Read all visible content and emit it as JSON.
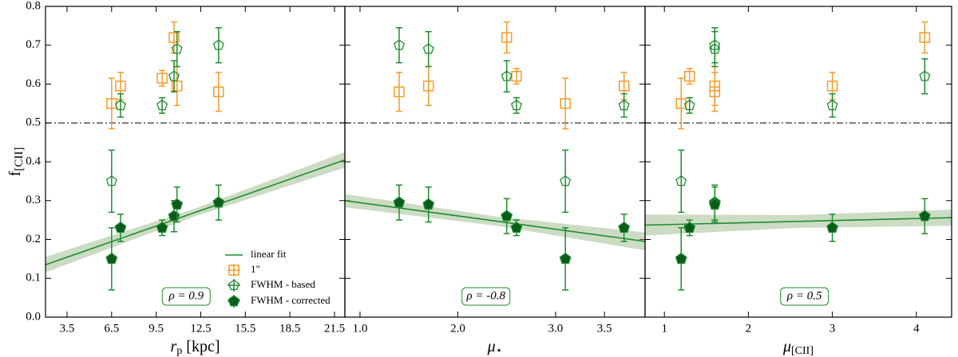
{
  "chart_data": [
    {
      "type": "scatter",
      "xlabel": "r",
      "xlabel_sub": "p",
      "xlabel_tail": " [kpc]",
      "ylabel": "f",
      "ylabel_sub": "[CII]",
      "xlim": [
        2.05,
        22.2
      ],
      "xticks": [
        3.5,
        6.5,
        9.5,
        12.5,
        15.5,
        18.5,
        21.5
      ],
      "ylim": [
        0,
        0.8
      ],
      "yticks": [
        {
          "value": 0,
          "label": "0.0"
        },
        0.1,
        0.2,
        0.3,
        0.4,
        0.5,
        0.6,
        0.7,
        0.8
      ],
      "hline": 0.5,
      "x": [
        6.5,
        7.1,
        9.9,
        10.7,
        10.9,
        13.7
      ],
      "series": [
        {
          "name": "1\"",
          "color": "#f39c2b",
          "marker": "square",
          "values": [
            0.55,
            0.595,
            0.615,
            0.72,
            0.595,
            0.58
          ],
          "errors": [
            0.065,
            0.035,
            0.02,
            0.04,
            0.05,
            0.05
          ]
        },
        {
          "name": "FWHM - based",
          "color": "#1e8c2e",
          "marker": "pentagon-open",
          "values": [
            0.35,
            0.545,
            0.545,
            0.62,
            0.69,
            0.7
          ],
          "errors": [
            0.08,
            0.03,
            0.02,
            0.04,
            0.045,
            0.045
          ]
        },
        {
          "name": "FWHM - corrected",
          "color": "#1e8c2e",
          "marker": "pentagon-filled",
          "values": [
            0.15,
            0.23,
            0.23,
            0.26,
            0.29,
            0.295
          ],
          "errors": [
            0.08,
            0.035,
            0.02,
            0.04,
            0.045,
            0.045
          ]
        }
      ],
      "fit": {
        "name": "linear fit",
        "color": "#1e8c2e",
        "x": [
          2.05,
          12,
          22.2
        ],
        "values": [
          0.135,
          0.268,
          0.405
        ],
        "lower": [
          0.115,
          0.258,
          0.385
        ],
        "upper": [
          0.155,
          0.278,
          0.425
        ]
      },
      "annotation": "ρ = 0.9",
      "legend": "lower right"
    },
    {
      "type": "scatter",
      "xlabel": "μ",
      "xlabel_sub": "⋆",
      "xlim": [
        0.845,
        3.915
      ],
      "xticks": [
        {
          "value": 1,
          "label": "1.0"
        },
        {
          "value": 2,
          "label": "2.0"
        },
        {
          "value": 3,
          "label": "3.0"
        },
        3.5
      ],
      "ylim": [
        0,
        0.8
      ],
      "yticks": [
        0,
        0.1,
        0.2,
        0.3,
        0.4,
        0.5,
        0.6,
        0.7,
        0.8
      ],
      "hline": 0.5,
      "x": [
        1.4,
        1.7,
        2.5,
        2.6,
        3.1,
        3.7
      ],
      "series": [
        {
          "color": "#f39c2b",
          "marker": "square",
          "values": [
            0.58,
            0.595,
            0.72,
            0.62,
            0.55,
            0.595
          ],
          "errors": [
            0.05,
            0.05,
            0.04,
            0.02,
            0.065,
            0.035
          ]
        },
        {
          "color": "#1e8c2e",
          "marker": "pentagon-open",
          "values": [
            0.7,
            0.69,
            0.62,
            0.545,
            0.35,
            0.545
          ],
          "errors": [
            0.045,
            0.045,
            0.04,
            0.02,
            0.08,
            0.03
          ]
        },
        {
          "color": "#1e8c2e",
          "marker": "pentagon-filled",
          "values": [
            0.295,
            0.29,
            0.26,
            0.23,
            0.15,
            0.23
          ],
          "errors": [
            0.045,
            0.045,
            0.045,
            0.02,
            0.08,
            0.035
          ]
        }
      ],
      "fit": {
        "color": "#1e8c2e",
        "x": [
          0.845,
          2.4,
          3.915
        ],
        "values": [
          0.3,
          0.247,
          0.195
        ],
        "lower": [
          0.283,
          0.235,
          0.172
        ],
        "upper": [
          0.317,
          0.259,
          0.218
        ]
      },
      "annotation": "ρ = -0.8"
    },
    {
      "type": "scatter",
      "xlabel": "μ",
      "xlabel_sub": "[CII]",
      "xlim": [
        0.77,
        4.42
      ],
      "xticks": [
        1,
        2,
        3,
        4
      ],
      "ylim": [
        0,
        0.8
      ],
      "yticks": [
        0,
        0.1,
        0.2,
        0.3,
        0.4,
        0.5,
        0.6,
        0.7,
        0.8
      ],
      "hline": 0.5,
      "x": [
        1.2,
        1.3,
        1.6,
        1.6,
        3.0,
        4.1
      ],
      "series": [
        {
          "color": "#f39c2b",
          "marker": "square",
          "values": [
            0.55,
            0.62,
            0.58,
            0.595,
            0.595,
            0.72
          ],
          "errors": [
            0.065,
            0.02,
            0.05,
            0.05,
            0.035,
            0.04
          ]
        },
        {
          "color": "#1e8c2e",
          "marker": "pentagon-open",
          "values": [
            0.35,
            0.545,
            0.7,
            0.69,
            0.545,
            0.62
          ],
          "errors": [
            0.08,
            0.02,
            0.045,
            0.045,
            0.03,
            0.045
          ]
        },
        {
          "color": "#1e8c2e",
          "marker": "pentagon-filled",
          "values": [
            0.15,
            0.23,
            0.295,
            0.29,
            0.23,
            0.26
          ],
          "errors": [
            0.08,
            0.02,
            0.045,
            0.045,
            0.035,
            0.045
          ]
        }
      ],
      "fit": {
        "color": "#1e8c2e",
        "x": [
          0.77,
          2.6,
          4.42
        ],
        "values": [
          0.237,
          0.2465,
          0.256
        ],
        "lower": [
          0.21,
          0.23,
          0.235
        ],
        "upper": [
          0.264,
          0.263,
          0.277
        ]
      },
      "annotation": "ρ = 0.5"
    }
  ]
}
